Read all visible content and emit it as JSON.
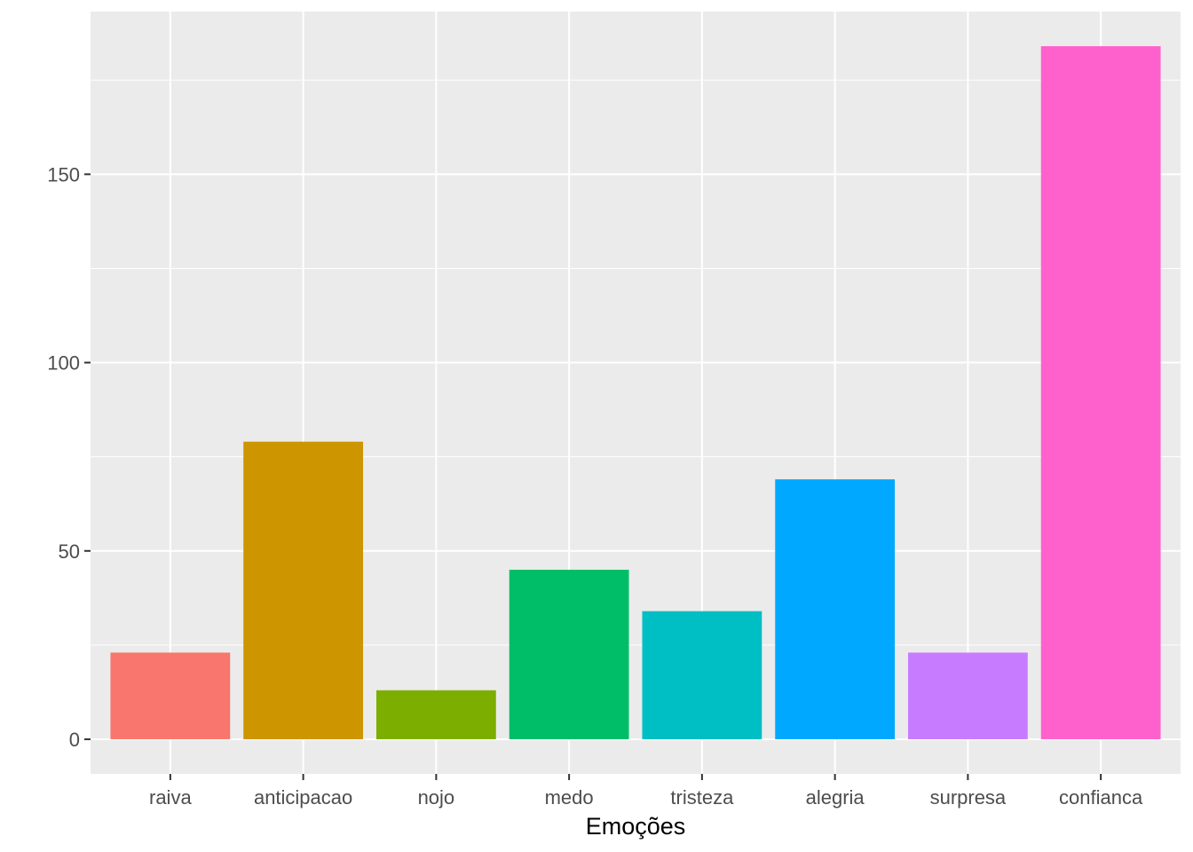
{
  "chart_data": {
    "type": "bar",
    "title": "",
    "xlabel": "Emoções",
    "ylabel": "",
    "categories": [
      "raiva",
      "anticipacao",
      "nojo",
      "medo",
      "tristeza",
      "alegria",
      "surpresa",
      "confianca"
    ],
    "values": [
      23,
      79,
      13,
      45,
      34,
      69,
      23,
      184
    ],
    "colors": [
      "#F8766D",
      "#CD9600",
      "#7CAE00",
      "#00BE67",
      "#00BFC4",
      "#00A9FF",
      "#C77CFF",
      "#FF61CC"
    ],
    "y_ticks": [
      0,
      50,
      100,
      150
    ],
    "ylim": [
      -9.2,
      193.2
    ],
    "grid": true,
    "legend": "none",
    "panel_background": "#EBEBEB",
    "grid_color": "#FFFFFF"
  }
}
